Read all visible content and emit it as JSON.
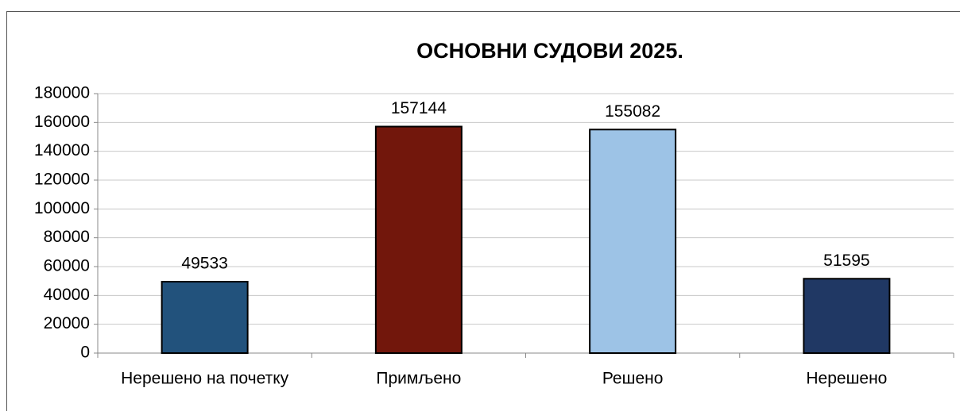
{
  "chart_data": {
    "type": "bar",
    "title": "ОСНОВНИ СУДОВИ 2025.",
    "categories": [
      "Нерешено на почетку",
      "Примљено",
      "Решено",
      "Нерешено"
    ],
    "values": [
      49533,
      157144,
      155082,
      51595
    ],
    "colors": [
      "#22527c",
      "#72170c",
      "#9dc3e6",
      "#203864"
    ],
    "ylim": [
      0,
      180000
    ],
    "yticks": [
      0,
      20000,
      40000,
      60000,
      80000,
      100000,
      120000,
      140000,
      160000,
      180000
    ],
    "grid": true
  }
}
